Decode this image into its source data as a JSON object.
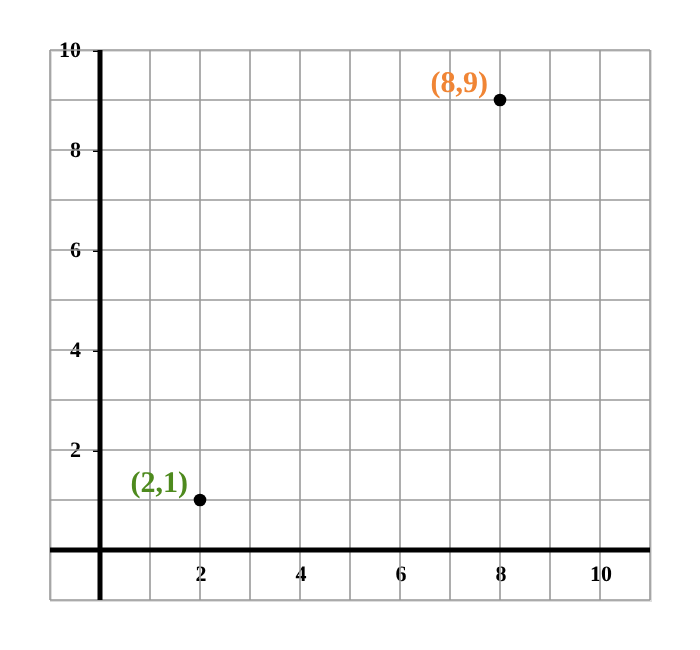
{
  "chart_data": {
    "type": "scatter",
    "x": [
      2,
      8
    ],
    "series": [
      {
        "color": "#000000",
        "values": [
          1,
          9
        ]
      }
    ],
    "xlim": [
      -1,
      11
    ],
    "ylim": [
      -1,
      10
    ],
    "xticks": [
      {
        "value": -1,
        "label": null
      },
      {
        "value": 0,
        "label": null
      },
      {
        "value": 1,
        "label": null
      },
      2,
      {
        "value": 3,
        "label": null
      },
      4,
      {
        "value": 5,
        "label": null
      },
      6,
      {
        "value": 7,
        "label": null
      },
      8,
      {
        "value": 9,
        "label": null
      },
      10,
      {
        "value": 11,
        "label": null
      }
    ],
    "yticks": [
      {
        "value": -1,
        "label": null
      },
      {
        "value": 0,
        "label": null
      },
      {
        "value": 1,
        "label": null
      },
      2,
      {
        "value": 3,
        "label": null
      },
      4,
      {
        "value": 5,
        "label": null
      },
      6,
      {
        "value": 7,
        "label": null
      },
      8,
      {
        "value": 9,
        "label": null
      },
      10
    ],
    "annotations": [
      {
        "text": "(2,1)",
        "x": 2,
        "y": 1
      },
      {
        "text": "(8,9)",
        "x": 8,
        "y": 9
      }
    ],
    "grid": true,
    "marker": "circle"
  }
}
